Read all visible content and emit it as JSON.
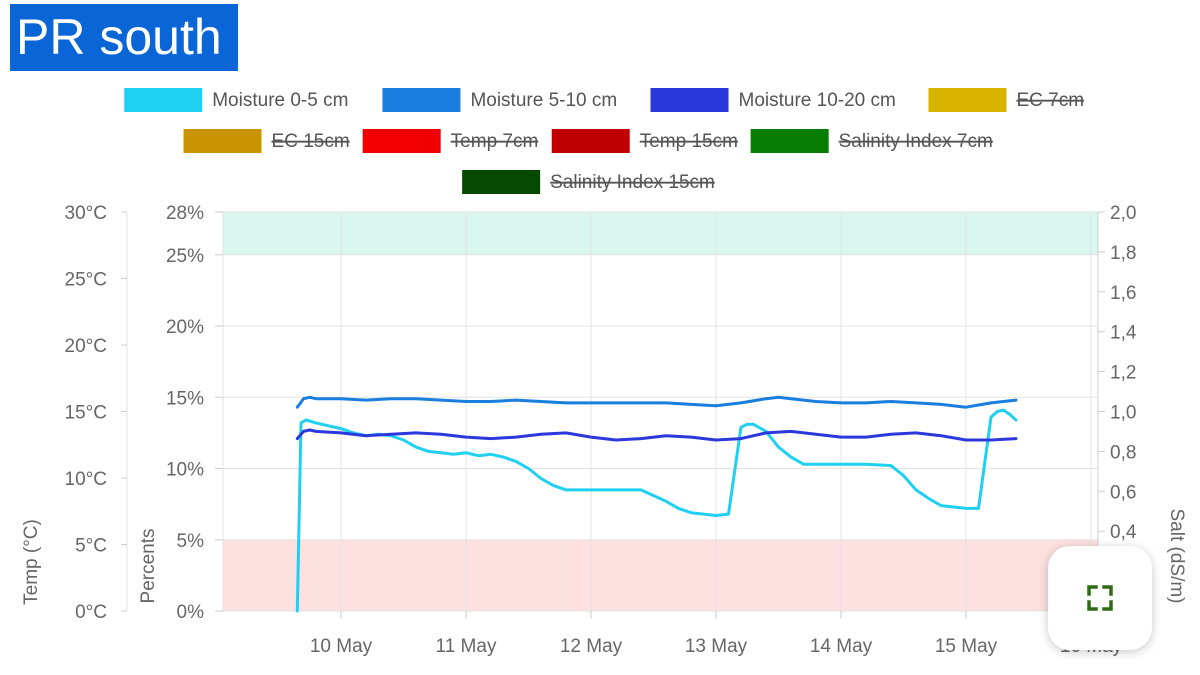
{
  "header": {
    "title": "PR south"
  },
  "expand_button": {
    "icon": "expand-icon",
    "icon_color": "#2e6b12"
  },
  "chart_data": {
    "type": "line",
    "x_ticks": [
      "10 May",
      "11 May",
      "12 May",
      "13 May",
      "14 May",
      "15 May",
      "16 May"
    ],
    "y_temp_axis": {
      "label": "Temp (°C)",
      "ticks": [
        "0°C",
        "5°C",
        "10°C",
        "15°C",
        "20°C",
        "25°C",
        "30°C"
      ],
      "range": [
        0,
        30
      ]
    },
    "y_percent_axis": {
      "label": "Percents",
      "ticks": [
        "0%",
        "5%",
        "10%",
        "15%",
        "20%",
        "25%",
        "28%"
      ],
      "range": [
        0,
        28
      ]
    },
    "y_salt_axis": {
      "label": "Salt (dS/m)",
      "ticks": [
        "0,4",
        "0,6",
        "0,8",
        "1,0",
        "1,2",
        "1,4",
        "1,6",
        "1,8",
        "2,0"
      ],
      "range": [
        0,
        2.0
      ]
    },
    "bands": [
      {
        "from": 25,
        "to": 28,
        "color": "#d9f7ef",
        "axis": "percent"
      },
      {
        "from": 0,
        "to": 5,
        "color": "#fde0e0",
        "axis": "percent"
      }
    ],
    "legend": [
      {
        "name": "Moisture 0-5 cm",
        "color": "#1fd0f3",
        "hidden": false
      },
      {
        "name": "Moisture 5-10 cm",
        "color": "#1a7ede",
        "hidden": false
      },
      {
        "name": "Moisture 10-20 cm",
        "color": "#2b38dc",
        "hidden": false
      },
      {
        "name": "EC 7cm",
        "color": "#d8b400",
        "hidden": true
      },
      {
        "name": "EC 15cm",
        "color": "#c99400",
        "hidden": true
      },
      {
        "name": "Temp 7cm",
        "color": "#f20000",
        "hidden": true
      },
      {
        "name": "Temp 15cm",
        "color": "#c00000",
        "hidden": true
      },
      {
        "name": "Salinity Index 7cm",
        "color": "#067c00",
        "hidden": true
      },
      {
        "name": "Salinity Index 15cm",
        "color": "#054a00",
        "hidden": true
      }
    ],
    "series": [
      {
        "name": "Moisture 0-5 cm",
        "color": "#1fd0f3",
        "x": [
          9.65,
          9.68,
          9.72,
          9.8,
          9.9,
          10.0,
          10.1,
          10.2,
          10.3,
          10.4,
          10.5,
          10.6,
          10.7,
          10.8,
          10.9,
          11.0,
          11.1,
          11.2,
          11.3,
          11.4,
          11.5,
          11.6,
          11.7,
          11.8,
          11.9,
          12.0,
          12.2,
          12.4,
          12.6,
          12.7,
          12.8,
          12.9,
          13.0,
          13.1,
          13.2,
          13.25,
          13.3,
          13.4,
          13.5,
          13.6,
          13.7,
          13.8,
          13.9,
          14.0,
          14.2,
          14.4,
          14.5,
          14.6,
          14.7,
          14.8,
          14.9,
          15.0,
          15.1,
          15.2,
          15.25,
          15.3,
          15.35,
          15.4
        ],
        "y": [
          0,
          13.2,
          13.4,
          13.2,
          13.0,
          12.8,
          12.5,
          12.3,
          12.4,
          12.3,
          12.0,
          11.5,
          11.2,
          11.1,
          11.0,
          11.1,
          10.9,
          11.0,
          10.8,
          10.5,
          10.0,
          9.3,
          8.8,
          8.5,
          8.5,
          8.5,
          8.5,
          8.5,
          7.7,
          7.2,
          6.9,
          6.8,
          6.7,
          6.8,
          12.9,
          13.1,
          13.1,
          12.6,
          11.5,
          10.8,
          10.3,
          10.3,
          10.3,
          10.3,
          10.3,
          10.2,
          9.5,
          8.5,
          7.9,
          7.4,
          7.3,
          7.2,
          7.2,
          13.6,
          14.0,
          14.1,
          13.8,
          13.4
        ]
      },
      {
        "name": "Moisture 5-10 cm",
        "color": "#1a7ede",
        "x": [
          9.65,
          9.7,
          9.75,
          9.8,
          10.0,
          10.2,
          10.4,
          10.6,
          10.8,
          11.0,
          11.2,
          11.4,
          11.6,
          11.8,
          12.0,
          12.2,
          12.4,
          12.6,
          12.8,
          13.0,
          13.2,
          13.4,
          13.5,
          13.6,
          13.8,
          14.0,
          14.2,
          14.4,
          14.6,
          14.8,
          15.0,
          15.2,
          15.4
        ],
        "y": [
          14.3,
          14.9,
          15.0,
          14.9,
          14.9,
          14.8,
          14.9,
          14.9,
          14.8,
          14.7,
          14.7,
          14.8,
          14.7,
          14.6,
          14.6,
          14.6,
          14.6,
          14.6,
          14.5,
          14.4,
          14.6,
          14.9,
          15.0,
          14.9,
          14.7,
          14.6,
          14.6,
          14.7,
          14.6,
          14.5,
          14.3,
          14.6,
          14.8
        ]
      },
      {
        "name": "Moisture 10-20 cm",
        "color": "#2b38dc",
        "x": [
          9.65,
          9.7,
          9.75,
          9.8,
          10.0,
          10.2,
          10.4,
          10.6,
          10.8,
          11.0,
          11.2,
          11.4,
          11.6,
          11.8,
          12.0,
          12.2,
          12.4,
          12.6,
          12.8,
          13.0,
          13.2,
          13.4,
          13.6,
          13.8,
          14.0,
          14.2,
          14.4,
          14.6,
          14.8,
          15.0,
          15.2,
          15.4
        ],
        "y": [
          12.1,
          12.6,
          12.7,
          12.6,
          12.5,
          12.3,
          12.4,
          12.5,
          12.4,
          12.2,
          12.1,
          12.2,
          12.4,
          12.5,
          12.2,
          12.0,
          12.1,
          12.3,
          12.2,
          12.0,
          12.1,
          12.5,
          12.6,
          12.4,
          12.2,
          12.2,
          12.4,
          12.5,
          12.3,
          12.0,
          12.0,
          12.1
        ]
      }
    ]
  }
}
